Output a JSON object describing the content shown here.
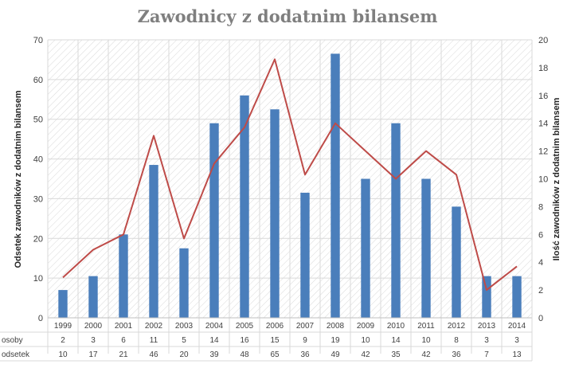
{
  "chart_data": {
    "type": "bar",
    "title": "Zawodnicy z dodatnim bilansem",
    "ylabel": "Odsetek zawodników z dodatnim bilansem",
    "y2label": "Ilość zawodników z dodatnim bilansem",
    "ylim": [
      0,
      70
    ],
    "y2lim": [
      0,
      20
    ],
    "yticks": [
      "0",
      "10",
      "20",
      "30",
      "40",
      "50",
      "60",
      "70"
    ],
    "y2ticks": [
      "0",
      "2",
      "4",
      "6",
      "8",
      "10",
      "12",
      "14",
      "16",
      "18",
      "20"
    ],
    "categories": [
      "1999",
      "2000",
      "2001",
      "2002",
      "2003",
      "2004",
      "2005",
      "2006",
      "2007",
      "2008",
      "2009",
      "2010",
      "2011",
      "2012",
      "2013",
      "2014"
    ],
    "series": [
      {
        "name": "osoby",
        "kind": "bar",
        "axis": "left",
        "values": [
          7,
          10.5,
          21,
          38.5,
          17.5,
          49,
          56,
          52.5,
          31.5,
          66.5,
          35,
          49,
          35,
          28,
          10.5,
          10.5
        ],
        "table_values": [
          "2",
          "3",
          "6",
          "11",
          "5",
          "14",
          "16",
          "15",
          "9",
          "19",
          "10",
          "14",
          "10",
          "8",
          "3",
          "3"
        ],
        "color": "#4a7ebb"
      },
      {
        "name": "odsetek",
        "kind": "line",
        "axis": "right",
        "values": [
          2.9,
          4.9,
          6.0,
          13.1,
          5.7,
          11.1,
          13.7,
          18.6,
          10.3,
          14.0,
          12.0,
          10.0,
          12.0,
          10.3,
          2.0,
          3.7
        ],
        "table_values": [
          "10",
          "17",
          "21",
          "46",
          "20",
          "39",
          "48",
          "65",
          "36",
          "49",
          "42",
          "35",
          "42",
          "36",
          "7",
          "13"
        ],
        "color": "#be4b48"
      }
    ],
    "grid": true
  }
}
